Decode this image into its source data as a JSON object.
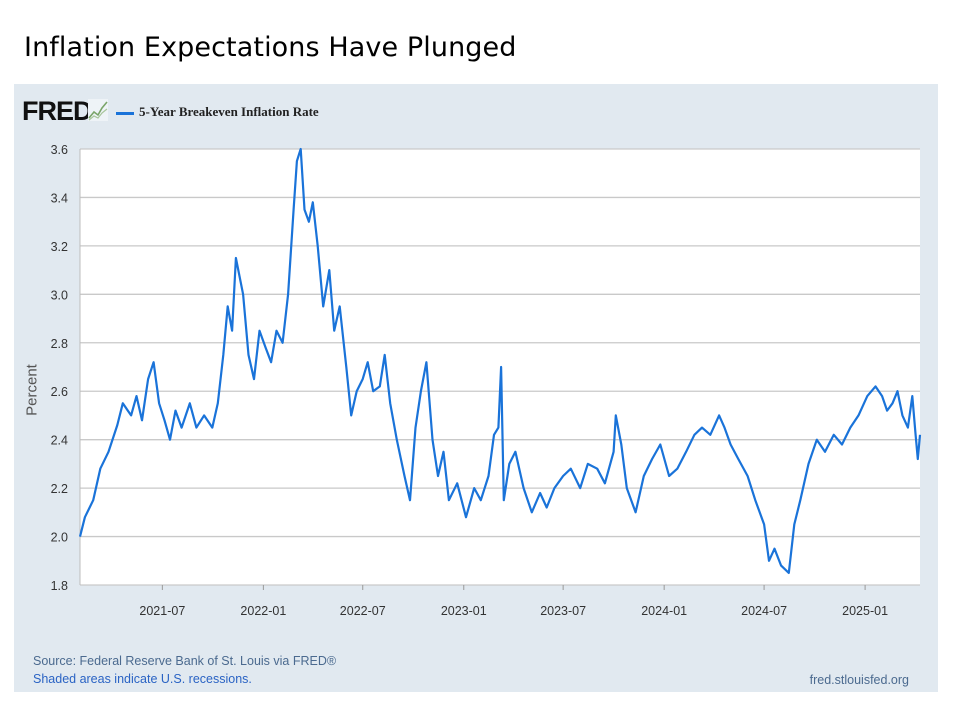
{
  "slide": {
    "title": "Inflation Expectations Have Plunged"
  },
  "fred": {
    "logo_text": "FRED",
    "source": "Source: Federal Reserve Bank of St. Louis via FRED®",
    "shaded_note": "Shaded areas indicate U.S. recessions.",
    "site": "fred.stlouisfed.org"
  },
  "colors": {
    "line": "#1a73d9",
    "panel_bg": "#e1e9f0",
    "plot_bg": "#ffffff",
    "grid": "#c9c9c9"
  },
  "chart_data": {
    "type": "line",
    "title": "",
    "xlabel": "",
    "ylabel": "Percent",
    "xlim": [
      "2021-02-01",
      "2025-04-11"
    ],
    "ylim": [
      1.8,
      3.6
    ],
    "grid": true,
    "y_ticks": [
      1.8,
      2.0,
      2.2,
      2.4,
      2.6,
      2.8,
      3.0,
      3.2,
      3.4,
      3.6
    ],
    "y_tick_labels": [
      "1.8",
      "2.0",
      "2.2",
      "2.4",
      "2.6",
      "2.8",
      "3.0",
      "3.2",
      "3.4",
      "3.6"
    ],
    "x_ticks": [
      "2021-07-01",
      "2022-01-01",
      "2022-07-01",
      "2023-01-01",
      "2023-07-01",
      "2024-01-01",
      "2024-07-01",
      "2025-01-01"
    ],
    "x_tick_labels": [
      "2021-07",
      "2022-01",
      "2022-07",
      "2023-01",
      "2023-07",
      "2024-01",
      "2024-07",
      "2025-01"
    ],
    "legend_placement": "top-left",
    "series": [
      {
        "name": "5-Year Breakeven Inflation Rate",
        "x": [
          "2021-02-01",
          "2021-02-10",
          "2021-02-25",
          "2021-03-10",
          "2021-03-25",
          "2021-04-10",
          "2021-04-20",
          "2021-05-05",
          "2021-05-15",
          "2021-05-25",
          "2021-06-05",
          "2021-06-15",
          "2021-06-25",
          "2021-07-05",
          "2021-07-15",
          "2021-07-25",
          "2021-08-05",
          "2021-08-20",
          "2021-09-01",
          "2021-09-15",
          "2021-09-30",
          "2021-10-10",
          "2021-10-20",
          "2021-10-28",
          "2021-11-05",
          "2021-11-12",
          "2021-11-25",
          "2021-12-05",
          "2021-12-15",
          "2021-12-25",
          "2022-01-05",
          "2022-01-15",
          "2022-01-25",
          "2022-02-05",
          "2022-02-15",
          "2022-02-25",
          "2022-03-03",
          "2022-03-10",
          "2022-03-17",
          "2022-03-25",
          "2022-04-01",
          "2022-04-10",
          "2022-04-20",
          "2022-05-01",
          "2022-05-10",
          "2022-05-20",
          "2022-06-01",
          "2022-06-10",
          "2022-06-20",
          "2022-07-01",
          "2022-07-10",
          "2022-07-20",
          "2022-08-01",
          "2022-08-10",
          "2022-08-20",
          "2022-09-01",
          "2022-09-15",
          "2022-09-25",
          "2022-10-05",
          "2022-10-15",
          "2022-10-25",
          "2022-11-05",
          "2022-11-15",
          "2022-11-25",
          "2022-12-05",
          "2022-12-20",
          "2023-01-05",
          "2023-01-20",
          "2023-02-01",
          "2023-02-15",
          "2023-02-25",
          "2023-03-05",
          "2023-03-10",
          "2023-03-15",
          "2023-03-25",
          "2023-04-05",
          "2023-04-20",
          "2023-05-05",
          "2023-05-20",
          "2023-06-01",
          "2023-06-15",
          "2023-07-01",
          "2023-07-15",
          "2023-08-01",
          "2023-08-15",
          "2023-09-01",
          "2023-09-15",
          "2023-10-01",
          "2023-10-05",
          "2023-10-15",
          "2023-10-25",
          "2023-11-10",
          "2023-11-25",
          "2023-12-10",
          "2023-12-25",
          "2024-01-10",
          "2024-01-25",
          "2024-02-10",
          "2024-02-25",
          "2024-03-10",
          "2024-03-25",
          "2024-04-10",
          "2024-04-20",
          "2024-05-01",
          "2024-05-15",
          "2024-06-01",
          "2024-06-15",
          "2024-07-01",
          "2024-07-10",
          "2024-07-20",
          "2024-08-01",
          "2024-08-15",
          "2024-08-25",
          "2024-09-05",
          "2024-09-20",
          "2024-10-05",
          "2024-10-20",
          "2024-11-05",
          "2024-11-20",
          "2024-12-05",
          "2024-12-20",
          "2025-01-05",
          "2025-01-20",
          "2025-02-01",
          "2025-02-10",
          "2025-02-20",
          "2025-03-01",
          "2025-03-10",
          "2025-03-20",
          "2025-03-28",
          "2025-04-03",
          "2025-04-07",
          "2025-04-11"
        ],
        "values": [
          2.0,
          2.08,
          2.15,
          2.28,
          2.35,
          2.46,
          2.55,
          2.5,
          2.58,
          2.48,
          2.65,
          2.72,
          2.55,
          2.48,
          2.4,
          2.52,
          2.45,
          2.55,
          2.45,
          2.5,
          2.45,
          2.55,
          2.75,
          2.95,
          2.85,
          3.15,
          3.0,
          2.75,
          2.65,
          2.85,
          2.78,
          2.72,
          2.85,
          2.8,
          3.0,
          3.35,
          3.55,
          3.6,
          3.35,
          3.3,
          3.38,
          3.2,
          2.95,
          3.1,
          2.85,
          2.95,
          2.7,
          2.5,
          2.6,
          2.65,
          2.72,
          2.6,
          2.62,
          2.75,
          2.55,
          2.4,
          2.25,
          2.15,
          2.45,
          2.6,
          2.72,
          2.4,
          2.25,
          2.35,
          2.15,
          2.22,
          2.08,
          2.2,
          2.15,
          2.25,
          2.42,
          2.45,
          2.7,
          2.15,
          2.3,
          2.35,
          2.2,
          2.1,
          2.18,
          2.12,
          2.2,
          2.25,
          2.28,
          2.2,
          2.3,
          2.28,
          2.22,
          2.35,
          2.5,
          2.38,
          2.2,
          2.1,
          2.25,
          2.32,
          2.38,
          2.25,
          2.28,
          2.35,
          2.42,
          2.45,
          2.42,
          2.5,
          2.45,
          2.38,
          2.32,
          2.25,
          2.15,
          2.05,
          1.9,
          1.95,
          1.88,
          1.85,
          2.05,
          2.15,
          2.3,
          2.4,
          2.35,
          2.42,
          2.38,
          2.45,
          2.5,
          2.58,
          2.62,
          2.58,
          2.52,
          2.55,
          2.6,
          2.5,
          2.45,
          2.58,
          2.42,
          2.32,
          2.42
        ]
      }
    ]
  }
}
